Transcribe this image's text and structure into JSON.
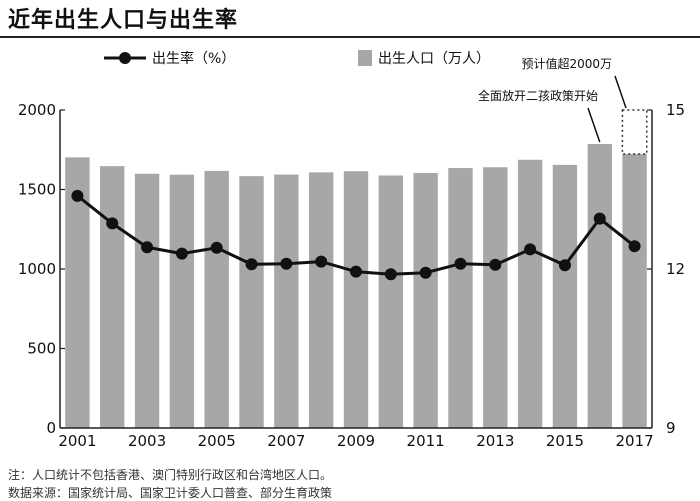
{
  "title": "近年出生人口与出生率",
  "notes": [
    "注：人口统计不包括香港、澳门特别行政区和台湾地区人口。",
    "数据来源：国家统计局、国家卫计委人口普查、部分生育政策"
  ],
  "colors": {
    "bar": "#a7a7a7",
    "line": "#111111",
    "axis": "#222222"
  },
  "chart_data": {
    "type": "bar",
    "categories": [
      2001,
      2002,
      2003,
      2004,
      2005,
      2006,
      2007,
      2008,
      2009,
      2010,
      2011,
      2012,
      2013,
      2014,
      2015,
      2016,
      2017
    ],
    "x_tick_labels": [
      "2001",
      "2003",
      "2005",
      "2007",
      "2009",
      "2011",
      "2013",
      "2015",
      "2017"
    ],
    "series": [
      {
        "name": "出生人口（万人）",
        "type": "bar",
        "axis": "left",
        "values": [
          1702,
          1647,
          1599,
          1593,
          1617,
          1584,
          1594,
          1608,
          1615,
          1588,
          1604,
          1635,
          1640,
          1687,
          1655,
          1786,
          1723
        ]
      },
      {
        "name": "出生率（%）",
        "type": "line",
        "axis": "right",
        "values": [
          13.38,
          12.86,
          12.41,
          12.29,
          12.4,
          12.09,
          12.1,
          12.14,
          11.95,
          11.9,
          11.93,
          12.1,
          12.08,
          12.37,
          12.07,
          12.95,
          12.43
        ]
      }
    ],
    "y_left": {
      "min": 0,
      "max": 2000,
      "ticks": [
        0,
        500,
        1000,
        1500,
        2000
      ]
    },
    "y_right": {
      "min": 9,
      "max": 15,
      "ticks": [
        9,
        12,
        15
      ]
    },
    "forecast": {
      "year": 2017,
      "value": 2000,
      "label": "预计值超2000万"
    },
    "annotation": {
      "year": 2016,
      "label": "全面放开二孩政策开始"
    },
    "legend_position": "top"
  }
}
